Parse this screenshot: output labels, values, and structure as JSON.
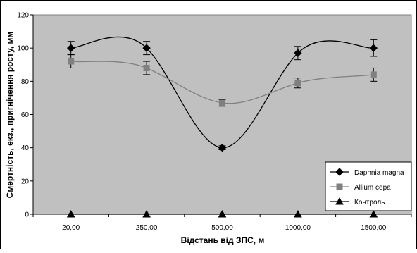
{
  "chart_data": {
    "type": "line",
    "title": "",
    "xlabel": "Відстань від ЗПС, м",
    "ylabel": "Смертність, екз., пригнічення росту, мм",
    "categories": [
      "20,00",
      "250,00",
      "500,00",
      "1000,00",
      "1500,00"
    ],
    "ylim": [
      0,
      120
    ],
    "yticks": [
      0,
      20,
      40,
      60,
      80,
      100,
      120
    ],
    "grid": false,
    "legend_position": "bottom-right",
    "plot_background": "#c0c0c0",
    "series": [
      {
        "name": "Daphnia magna",
        "values": [
          100,
          100,
          40,
          97,
          100
        ],
        "errors": [
          4,
          4,
          1.2,
          4,
          5
        ],
        "color": "#000000",
        "marker": "diamond"
      },
      {
        "name": "Allium cepa",
        "values": [
          92,
          88,
          67,
          79,
          84
        ],
        "errors": [
          4,
          4,
          2,
          3,
          4
        ],
        "color": "#808080",
        "marker": "square"
      },
      {
        "name": "Контроль",
        "values": [
          0,
          0,
          0,
          0,
          0
        ],
        "errors": [
          0,
          0,
          0,
          0,
          0
        ],
        "color": "#000000",
        "marker": "triangle"
      }
    ]
  }
}
